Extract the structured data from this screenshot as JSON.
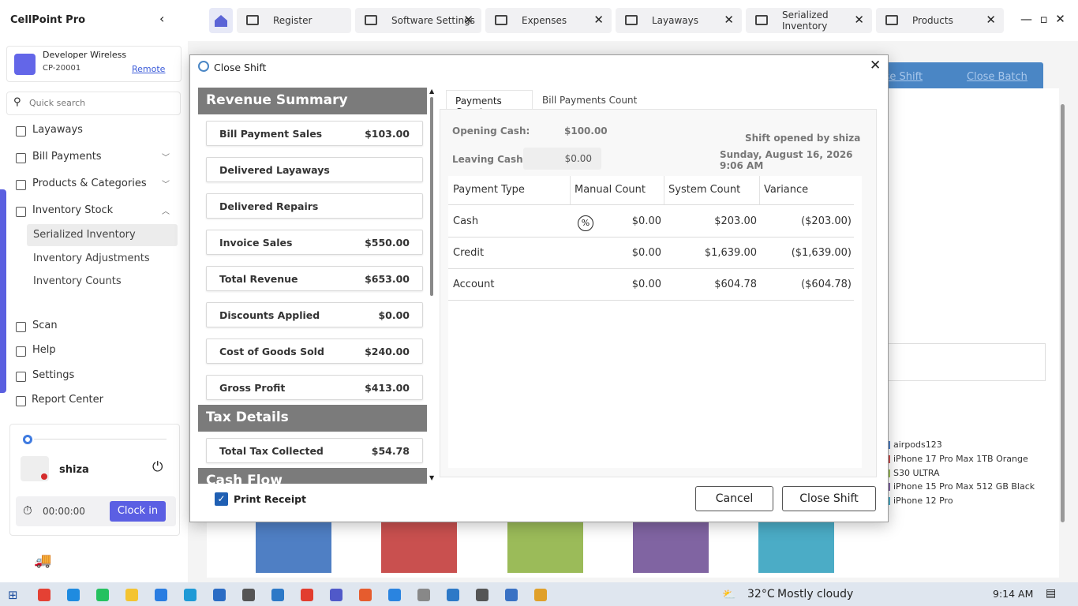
{
  "app": {
    "title": "CellPoint Pro"
  },
  "tabs": [
    "Register",
    "Software Settings",
    "Expenses",
    "Layaways",
    "Serialized Inventory",
    "Products"
  ],
  "store": {
    "name": "Developer Wireless",
    "id": "CP-20001",
    "link": "Remote"
  },
  "search": {
    "placeholder": "Quick search"
  },
  "nav": {
    "items": [
      "Layaways",
      "Bill Payments",
      "Products & Categories",
      "Inventory Stock"
    ],
    "subitems": [
      "Serialized Inventory",
      "Inventory Adjustments",
      "Inventory Counts"
    ],
    "bottom": [
      "Scan",
      "Help",
      "Settings",
      "Report Center"
    ]
  },
  "user": {
    "name": "shiza",
    "timer": "00:00:00",
    "clock_in": "Clock in"
  },
  "background": {
    "buttons": [
      "Close Shift",
      "Close Batch"
    ],
    "legend": [
      "airpods123",
      "iPhone 17 Pro Max 1TB Orange",
      "S30 ULTRA",
      "iPhone 15 Pro Max 512 GB Black",
      "iPhone 12 Pro"
    ]
  },
  "dialog": {
    "title": "Close Shift",
    "sections": [
      {
        "title": "Revenue Summary",
        "rows": [
          {
            "label": "Bill Payment Sales",
            "value": "$103.00"
          },
          {
            "label": "Delivered Layaways"
          },
          {
            "label": "Delivered Repairs"
          },
          {
            "label": "Invoice Sales",
            "value": "$550.00"
          },
          {
            "label": "Total Revenue",
            "value": "$653.00"
          },
          {
            "label": "Discounts Applied",
            "value": "$0.00"
          },
          {
            "label": "Cost of Goods Sold",
            "value": "$240.00"
          },
          {
            "label": "Gross Profit",
            "value": "$413.00"
          }
        ]
      },
      {
        "title": "Tax Details",
        "rows": [
          {
            "label": "Total Tax Collected",
            "value": "$54.78"
          }
        ]
      },
      {
        "title": "Cash Flow"
      }
    ],
    "tabs": [
      "Payments Count",
      "Bill Payments Count"
    ],
    "opening_cash": {
      "label": "Opening Cash:",
      "value": "$100.00"
    },
    "leaving_cash": {
      "label": "Leaving Cash:",
      "value": "$0.00"
    },
    "shift_opened": "Shift opened by shiza",
    "shift_date": "Sunday, August 16, 2026 9:06 AM",
    "table": {
      "columns": [
        "Payment Type",
        "Manual Count",
        "System Count",
        "Variance"
      ],
      "rows": [
        [
          "Cash",
          "$0.00",
          "$203.00",
          "($203.00)"
        ],
        [
          "Credit",
          "$0.00",
          "$1,639.00",
          "($1,639.00)"
        ],
        [
          "Account",
          "$0.00",
          "$604.78",
          "($604.78)"
        ]
      ]
    },
    "print_receipt": "Print Receipt",
    "cancel": "Cancel",
    "confirm": "Close Shift"
  },
  "taskbar": {
    "weather": "32°C",
    "condition": "Mostly cloudy",
    "time": "9:14 AM"
  }
}
